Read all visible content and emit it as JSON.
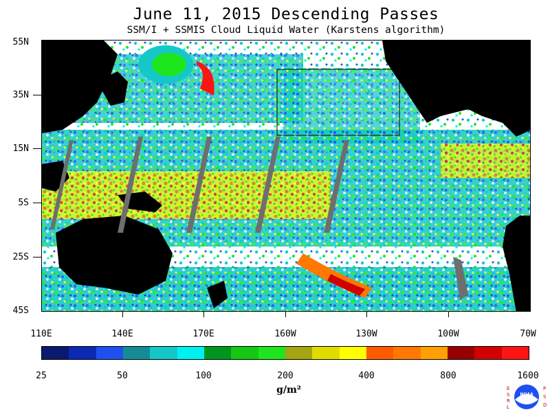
{
  "title": "June 11, 2015  Descending Passes",
  "subtitle": "SSM/I + SSMIS Cloud Liquid Water (Karstens algorithm)",
  "latitude_labels": [
    "55N",
    "35N",
    "15N",
    "5S",
    "25S",
    "45S"
  ],
  "longitude_labels": [
    "110E",
    "140E",
    "170E",
    "160W",
    "130W",
    "100W",
    "70W"
  ],
  "colorbar": {
    "colors": [
      "#0a1a6e",
      "#0a2ab4",
      "#1e50f0",
      "#148c96",
      "#14c8c8",
      "#00f0f0",
      "#00961e",
      "#14c814",
      "#1ee61e",
      "#a5a514",
      "#e1dc00",
      "#ffff00",
      "#ff5a00",
      "#ff7800",
      "#ffa000",
      "#960000",
      "#d20000",
      "#ff1414"
    ],
    "tick_labels": [
      "25",
      "50",
      "100",
      "200",
      "400",
      "800",
      "1600"
    ],
    "units": "g/m²"
  },
  "logo": {
    "left_text": "ESRL",
    "right_text": "PSD",
    "center_text": "NOAA"
  },
  "colors": {
    "land": "#000000",
    "missing": "#6e6e6e",
    "no_data": "#ffffff"
  }
}
